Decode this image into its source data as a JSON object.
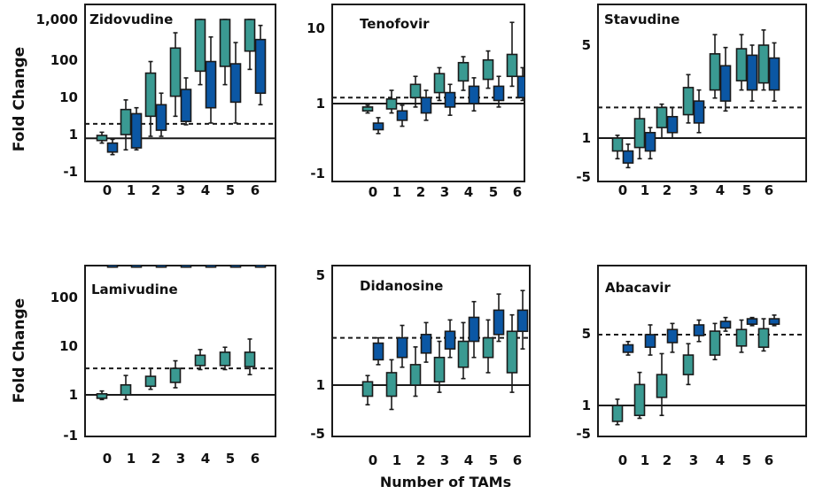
{
  "figure": {
    "y_label": "Fold Change",
    "x_label": "Number of TAMs",
    "colors": {
      "teal": "#3a9a92",
      "blue": "#0b57a4",
      "stroke": "#1a1a1a"
    }
  },
  "chart_data": [
    {
      "type": "box",
      "title": "Zidovudine",
      "categories": [
        "0",
        "1",
        "2",
        "3",
        "4",
        "5",
        "6"
      ],
      "yticks": [
        "1,000",
        "100",
        "10",
        "1",
        "-1"
      ],
      "series": [
        {
          "color": "teal",
          "boxes": [
            {
              "x": "0",
              "whisker_low": 0.6,
              "q1": 0.7,
              "q3": 0.95,
              "whisker_high": 1.15
            },
            {
              "x": "1",
              "whisker_low": 0.4,
              "q1": 1.0,
              "q3": 4.5,
              "whisker_high": 8
            },
            {
              "x": "2",
              "whisker_low": 0.9,
              "q1": 3,
              "q3": 40,
              "whisker_high": 80
            },
            {
              "x": "3",
              "whisker_low": 3,
              "q1": 10,
              "q3": 180,
              "whisker_high": 450
            },
            {
              "x": "4",
              "whisker_low": 20,
              "q1": 45,
              "q3": 1000,
              "whisker_high": 1000
            },
            {
              "x": "5",
              "whisker_low": 20,
              "q1": 60,
              "q3": 1000,
              "whisker_high": 1000
            },
            {
              "x": "6",
              "whisker_low": 50,
              "q1": 150,
              "q3": 1000,
              "whisker_high": 1000
            }
          ]
        },
        {
          "color": "blue",
          "boxes": [
            {
              "x": "0",
              "whisker_low": 0.3,
              "q1": 0.35,
              "q3": 0.6,
              "whisker_high": 0.75
            },
            {
              "x": "1",
              "whisker_low": 0.4,
              "q1": 0.45,
              "q3": 3.5,
              "whisker_high": 5
            },
            {
              "x": "2",
              "whisker_low": 0.9,
              "q1": 1.3,
              "q3": 6,
              "whisker_high": 12
            },
            {
              "x": "3",
              "whisker_low": 1.8,
              "q1": 2.2,
              "q3": 15,
              "whisker_high": 30
            },
            {
              "x": "4",
              "whisker_low": 2,
              "q1": 5,
              "q3": 80,
              "whisker_high": 350
            },
            {
              "x": "5",
              "whisker_low": 2,
              "q1": 7,
              "q3": 70,
              "whisker_high": 250
            },
            {
              "x": "6",
              "whisker_low": 6,
              "q1": 12,
              "q3": 300,
              "whisker_high": 700
            }
          ]
        }
      ],
      "reference_line": 0.8,
      "cutoff_dashed": 1.9
    },
    {
      "type": "box",
      "title": "Tenofovir",
      "categories": [
        "0",
        "1",
        "2",
        "3",
        "4",
        "5",
        "6"
      ],
      "yticks": [
        "10",
        "1",
        "-1"
      ],
      "series": [
        {
          "color": "teal",
          "boxes": [
            {
              "x": "0",
              "whisker_low": 0.75,
              "q1": 0.8,
              "q3": 0.9,
              "whisker_high": 0.95
            },
            {
              "x": "1",
              "whisker_low": 0.75,
              "q1": 0.85,
              "q3": 1.15,
              "whisker_high": 1.5
            },
            {
              "x": "2",
              "whisker_low": 0.9,
              "q1": 1.2,
              "q3": 1.8,
              "whisker_high": 2.3
            },
            {
              "x": "3",
              "whisker_low": 1.1,
              "q1": 1.4,
              "q3": 2.5,
              "whisker_high": 3.0
            },
            {
              "x": "4",
              "whisker_low": 1.5,
              "q1": 2.0,
              "q3": 3.5,
              "whisker_high": 4.2
            },
            {
              "x": "5",
              "whisker_low": 1.6,
              "q1": 2.1,
              "q3": 3.8,
              "whisker_high": 5
            },
            {
              "x": "6",
              "whisker_low": 1.7,
              "q1": 2.3,
              "q3": 4.5,
              "whisker_high": 12
            }
          ]
        },
        {
          "color": "blue",
          "boxes": [
            {
              "x": "0",
              "whisker_low": 0.4,
              "q1": 0.45,
              "q3": 0.55,
              "whisker_high": 0.65
            },
            {
              "x": "1",
              "whisker_low": 0.5,
              "q1": 0.6,
              "q3": 0.8,
              "whisker_high": 0.95
            },
            {
              "x": "2",
              "whisker_low": 0.6,
              "q1": 0.75,
              "q3": 1.2,
              "whisker_high": 1.5
            },
            {
              "x": "3",
              "whisker_low": 0.7,
              "q1": 0.9,
              "q3": 1.4,
              "whisker_high": 1.8
            },
            {
              "x": "4",
              "whisker_low": 0.8,
              "q1": 1.0,
              "q3": 1.7,
              "whisker_high": 2.2
            },
            {
              "x": "5",
              "whisker_low": 0.9,
              "q1": 1.1,
              "q3": 1.7,
              "whisker_high": 2.3
            },
            {
              "x": "6",
              "whisker_low": 1.1,
              "q1": 1.2,
              "q3": 2.3,
              "whisker_high": 3.0
            }
          ]
        }
      ],
      "reference_line": 1.0,
      "cutoff_dashed": 1.2
    },
    {
      "type": "box",
      "title": "Stavudine",
      "categories": [
        "0",
        "1",
        "2",
        "3",
        "4",
        "5",
        "6"
      ],
      "yticks": [
        "5",
        "1",
        "-5"
      ],
      "series": [
        {
          "color": "teal",
          "boxes": [
            {
              "x": "0",
              "whisker_low": 0.7,
              "q1": 0.8,
              "q3": 1.0,
              "whisker_high": 1.05
            },
            {
              "x": "1",
              "whisker_low": 0.7,
              "q1": 0.85,
              "q3": 1.4,
              "whisker_high": 1.7
            },
            {
              "x": "2",
              "whisker_low": 1.0,
              "q1": 1.2,
              "q3": 1.7,
              "whisker_high": 1.8
            },
            {
              "x": "3",
              "whisker_low": 1.3,
              "q1": 1.5,
              "q3": 2.4,
              "whisker_high": 3.0
            },
            {
              "x": "4",
              "whisker_low": 2.0,
              "q1": 2.3,
              "q3": 4.3,
              "whisker_high": 6.0
            },
            {
              "x": "5",
              "whisker_low": 2.3,
              "q1": 2.7,
              "q3": 4.7,
              "whisker_high": 6.0
            },
            {
              "x": "6",
              "whisker_low": 2.3,
              "q1": 2.6,
              "q3": 5.0,
              "whisker_high": 6.5
            }
          ]
        },
        {
          "color": "blue",
          "boxes": [
            {
              "x": "0",
              "whisker_low": 0.6,
              "q1": 0.65,
              "q3": 0.8,
              "whisker_high": 0.9
            },
            {
              "x": "1",
              "whisker_low": 0.7,
              "q1": 0.8,
              "q3": 1.1,
              "whisker_high": 1.2
            },
            {
              "x": "2",
              "whisker_low": 1.0,
              "q1": 1.1,
              "q3": 1.45,
              "whisker_high": 1.7
            },
            {
              "x": "3",
              "whisker_low": 1.1,
              "q1": 1.3,
              "q3": 1.9,
              "whisker_high": 2.3
            },
            {
              "x": "4",
              "whisker_low": 1.6,
              "q1": 1.9,
              "q3": 3.5,
              "whisker_high": 4.8
            },
            {
              "x": "5",
              "whisker_low": 1.9,
              "q1": 2.3,
              "q3": 4.2,
              "whisker_high": 5.0
            },
            {
              "x": "6",
              "whisker_low": 1.9,
              "q1": 2.3,
              "q3": 4.0,
              "whisker_high": 5.2
            }
          ]
        }
      ],
      "reference_line": 1.0,
      "cutoff_dashed": 1.7
    },
    {
      "type": "box",
      "title": "Lamivudine",
      "categories": [
        "0",
        "1",
        "2",
        "3",
        "4",
        "5",
        "6"
      ],
      "yticks": [
        "100",
        "10",
        "1",
        "-1"
      ],
      "series": [
        {
          "color": "teal",
          "boxes": [
            {
              "x": "0",
              "whisker_low": 0.8,
              "q1": 0.85,
              "q3": 1.05,
              "whisker_high": 1.2
            },
            {
              "x": "1",
              "whisker_low": 0.8,
              "q1": 1.0,
              "q3": 1.6,
              "whisker_high": 2.5
            },
            {
              "x": "2",
              "whisker_low": 1.3,
              "q1": 1.5,
              "q3": 2.4,
              "whisker_high": 3.5
            },
            {
              "x": "3",
              "whisker_low": 1.4,
              "q1": 1.8,
              "q3": 3.5,
              "whisker_high": 5.0
            },
            {
              "x": "4",
              "whisker_low": 3.3,
              "q1": 4.0,
              "q3": 6.5,
              "whisker_high": 8.5
            },
            {
              "x": "5",
              "whisker_low": 3.3,
              "q1": 4.0,
              "q3": 7.5,
              "whisker_high": 9.5
            },
            {
              "x": "6",
              "whisker_low": 2.6,
              "q1": 3.8,
              "q3": 7.5,
              "whisker_high": 14
            }
          ]
        },
        {
          "color": "blue",
          "boxes": [
            {
              "x": "0",
              "whisker_low": 420,
              "q1": 420,
              "q3": 500,
              "whisker_high": 500
            },
            {
              "x": "1",
              "whisker_low": 420,
              "q1": 420,
              "q3": 500,
              "whisker_high": 500
            },
            {
              "x": "2",
              "whisker_low": 420,
              "q1": 420,
              "q3": 500,
              "whisker_high": 500
            },
            {
              "x": "3",
              "whisker_low": 420,
              "q1": 420,
              "q3": 500,
              "whisker_high": 500
            },
            {
              "x": "4",
              "whisker_low": 420,
              "q1": 420,
              "q3": 500,
              "whisker_high": 500
            },
            {
              "x": "5",
              "whisker_low": 420,
              "q1": 420,
              "q3": 500,
              "whisker_high": 500
            },
            {
              "x": "6",
              "whisker_low": 420,
              "q1": 420,
              "q3": 500,
              "whisker_high": 500
            }
          ]
        }
      ],
      "reference_line": 1.0,
      "cutoff_dashed": 3.5
    },
    {
      "type": "box",
      "title": "Didanosine",
      "categories": [
        "0",
        "1",
        "2",
        "3",
        "4",
        "5",
        "6"
      ],
      "yticks": [
        "5",
        "1",
        "-5"
      ],
      "series": [
        {
          "color": "teal",
          "boxes": [
            {
              "x": "0",
              "whisker_low": 0.75,
              "q1": 0.85,
              "q3": 1.05,
              "whisker_high": 1.15
            },
            {
              "x": "1",
              "whisker_low": 0.7,
              "q1": 0.85,
              "q3": 1.2,
              "whisker_high": 1.45
            },
            {
              "x": "2",
              "whisker_low": 0.85,
              "q1": 1.0,
              "q3": 1.35,
              "whisker_high": 1.75
            },
            {
              "x": "3",
              "whisker_low": 0.9,
              "q1": 1.05,
              "q3": 1.5,
              "whisker_high": 1.9
            },
            {
              "x": "4",
              "whisker_low": 1.1,
              "q1": 1.3,
              "q3": 1.9,
              "whisker_high": 2.5
            },
            {
              "x": "5",
              "whisker_low": 1.2,
              "q1": 1.5,
              "q3": 2.0,
              "whisker_high": 2.6
            },
            {
              "x": "6",
              "whisker_low": 0.9,
              "q1": 1.2,
              "q3": 2.2,
              "whisker_high": 2.8
            }
          ]
        },
        {
          "color": "blue",
          "boxes": [
            {
              "x": "0",
              "whisker_low": 1.35,
              "q1": 1.45,
              "q3": 1.85,
              "whisker_high": 2.0
            },
            {
              "x": "1",
              "whisker_low": 1.3,
              "q1": 1.5,
              "q3": 2.0,
              "whisker_high": 2.4
            },
            {
              "x": "2",
              "whisker_low": 1.4,
              "q1": 1.6,
              "q3": 2.1,
              "whisker_high": 2.5
            },
            {
              "x": "3",
              "whisker_low": 1.5,
              "q1": 1.7,
              "q3": 2.2,
              "whisker_high": 2.6
            },
            {
              "x": "4",
              "whisker_low": 1.5,
              "q1": 1.9,
              "q3": 2.7,
              "whisker_high": 3.4
            },
            {
              "x": "5",
              "whisker_low": 1.9,
              "q1": 2.1,
              "q3": 3.0,
              "whisker_high": 3.8
            },
            {
              "x": "6",
              "whisker_low": 1.7,
              "q1": 2.2,
              "q3": 3.0,
              "whisker_high": 4.0
            }
          ]
        }
      ],
      "reference_line": 1.0,
      "cutoff_dashed": 2.0
    },
    {
      "type": "box",
      "title": "Abacavir",
      "categories": [
        "0",
        "1",
        "2",
        "3",
        "4",
        "5",
        "6"
      ],
      "yticks": [
        "5",
        "1",
        "-5"
      ],
      "series": [
        {
          "color": "teal",
          "boxes": [
            {
              "x": "0",
              "whisker_low": 0.65,
              "q1": 0.7,
              "q3": 1.0,
              "whisker_high": 1.15
            },
            {
              "x": "1",
              "whisker_low": 0.75,
              "q1": 0.8,
              "q3": 1.6,
              "whisker_high": 2.1
            },
            {
              "x": "2",
              "whisker_low": 0.8,
              "q1": 1.2,
              "q3": 2.0,
              "whisker_high": 3.2
            },
            {
              "x": "3",
              "whisker_low": 1.6,
              "q1": 2.0,
              "q3": 3.1,
              "whisker_high": 4.0
            },
            {
              "x": "4",
              "whisker_low": 2.8,
              "q1": 3.1,
              "q3": 5.3,
              "whisker_high": 6.3
            },
            {
              "x": "5",
              "whisker_low": 3.3,
              "q1": 3.8,
              "q3": 5.5,
              "whisker_high": 6.8
            },
            {
              "x": "6",
              "whisker_low": 3.4,
              "q1": 3.7,
              "q3": 5.6,
              "whisker_high": 7.0
            }
          ]
        },
        {
          "color": "blue",
          "boxes": [
            {
              "x": "0",
              "whisker_low": 3.1,
              "q1": 3.3,
              "q3": 3.9,
              "whisker_high": 4.2
            },
            {
              "x": "1",
              "whisker_low": 3.1,
              "q1": 3.7,
              "q3": 4.9,
              "whisker_high": 6.1
            },
            {
              "x": "2",
              "whisker_low": 3.3,
              "q1": 4.1,
              "q3": 5.5,
              "whisker_high": 6.3
            },
            {
              "x": "3",
              "whisker_low": 4.2,
              "q1": 4.8,
              "q3": 6.1,
              "whisker_high": 6.8
            },
            {
              "x": "4",
              "whisker_low": 5.3,
              "q1": 5.7,
              "q3": 6.6,
              "whisker_high": 7.2
            },
            {
              "x": "5",
              "whisker_low": 6.0,
              "q1": 6.2,
              "q3": 7.0,
              "whisker_high": 7.2
            },
            {
              "x": "6",
              "whisker_low": 6.0,
              "q1": 6.2,
              "q3": 7.0,
              "whisker_high": 7.6
            }
          ]
        }
      ],
      "reference_line": 1.0,
      "cutoff_dashed": 4.9
    }
  ]
}
